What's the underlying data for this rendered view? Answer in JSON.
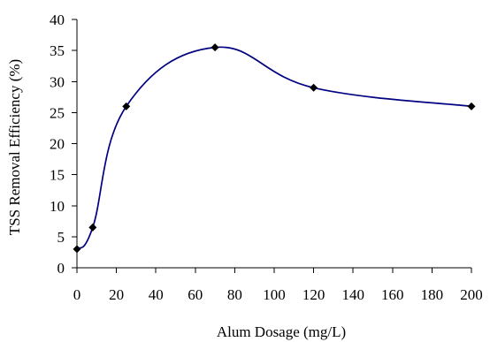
{
  "chart_data": {
    "type": "line",
    "title": "",
    "xlabel": "Alum Dosage (mg/L)",
    "ylabel": "TSS Removal Efficiency (%)",
    "xlim": [
      0,
      200
    ],
    "ylim": [
      0,
      40
    ],
    "xticks": [
      0,
      20,
      40,
      60,
      80,
      100,
      120,
      140,
      160,
      180,
      200
    ],
    "yticks": [
      0,
      5,
      10,
      15,
      20,
      25,
      30,
      35,
      40
    ],
    "xtick_labels": [
      "0",
      "20",
      "40",
      "60",
      "80",
      "100",
      "120",
      "140",
      "160",
      "180",
      "200"
    ],
    "ytick_labels": [
      "0",
      "5",
      "10",
      "15",
      "20",
      "25",
      "30",
      "35",
      "40"
    ],
    "grid": false,
    "legend": "none",
    "line_color": "#000080",
    "marker_color": "#000000",
    "series": [
      {
        "x": [
          0,
          8,
          25,
          70,
          120,
          200
        ],
        "y": [
          3,
          6.5,
          26,
          35.5,
          29,
          26
        ]
      }
    ]
  }
}
